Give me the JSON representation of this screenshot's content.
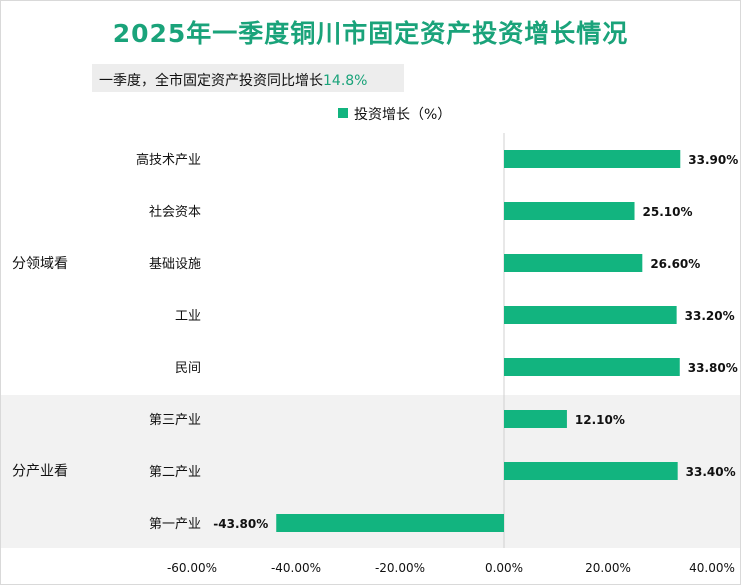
{
  "page": {
    "title": "2025年一季度铜川市固定资产投资增长情况",
    "subtitle_prefix": "一季度，全市固定资产投资同比增长",
    "subtitle_value": "14.8%"
  },
  "colors": {
    "bar": "#12b47f",
    "title": "#1aa37a",
    "band": "#f2f2f2"
  },
  "chart_data": {
    "type": "bar",
    "orientation": "horizontal",
    "legend": "投资增长（%）",
    "legend_position": "top",
    "groups": [
      {
        "label": "分领域看",
        "categories": [
          "高技术产业",
          "社会资本",
          "基础设施",
          "工业",
          "民间"
        ]
      },
      {
        "label": "分产业看",
        "categories": [
          "第三产业",
          "第二产业",
          "第一产业"
        ]
      }
    ],
    "categories": [
      "高技术产业",
      "社会资本",
      "基础设施",
      "工业",
      "民间",
      "第三产业",
      "第二产业",
      "第一产业"
    ],
    "series": [
      {
        "name": "投资增长（%）",
        "values": [
          33.9,
          25.1,
          26.6,
          33.2,
          33.8,
          12.1,
          33.4,
          -43.8
        ],
        "labels": [
          "33.90%",
          "25.10%",
          "26.60%",
          "33.20%",
          "33.80%",
          "12.10%",
          "33.40%",
          "-43.80%"
        ]
      }
    ],
    "xlim": [
      -60,
      40
    ],
    "xticks": [
      -60,
      -40,
      -20,
      0,
      20,
      40
    ],
    "xtick_labels": [
      "-60.00%",
      "-40.00%",
      "-20.00%",
      "0.00%",
      "20.00%",
      "40.00%"
    ],
    "grid": false
  }
}
